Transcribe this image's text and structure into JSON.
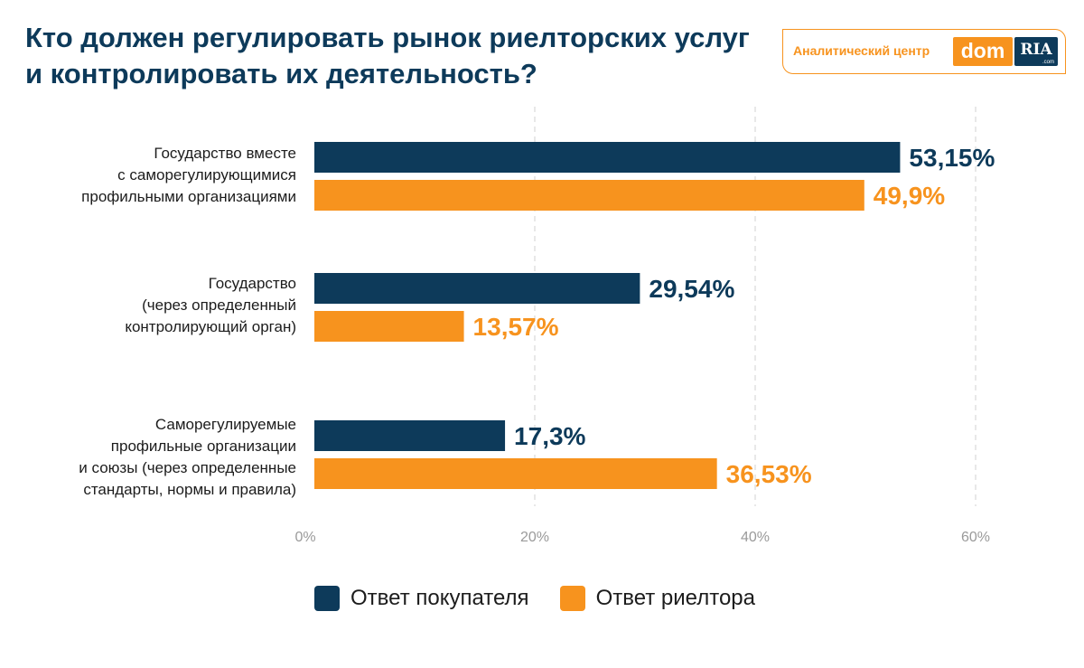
{
  "title": {
    "line1": "Кто должен регулировать рынок риелторских услуг",
    "line2": "и контролировать их деятельность?"
  },
  "brand": {
    "text": "Аналитический центр",
    "dom": "dom",
    "ria": "RIA",
    "ria_sub": ".com"
  },
  "colors": {
    "buyer": "#0d3a5a",
    "realtor": "#f7931e",
    "grid": "#d0d0d0",
    "tick": "#9a9a9a"
  },
  "chart_data": {
    "type": "bar",
    "orientation": "horizontal",
    "categories": [
      [
        "Государство вместе",
        "с саморегулирующимися",
        "профильными организациями"
      ],
      [
        "Государство",
        "(через определенный",
        "контролирующий орган)"
      ],
      [
        "Саморегулируемые",
        "профильные организации",
        "и союзы (через определенные",
        "стандарты, нормы и правила)"
      ]
    ],
    "series": [
      {
        "name": "Ответ покупателя",
        "values": [
          53.15,
          29.54,
          17.3
        ],
        "labels": [
          "53,15%",
          "29,54%",
          "17,3%"
        ]
      },
      {
        "name": "Ответ риелтора",
        "values": [
          49.9,
          13.57,
          36.53
        ],
        "labels": [
          "49,9%",
          "13,57%",
          "36,53%"
        ]
      }
    ],
    "xlim": [
      0,
      60
    ],
    "xticks": [
      0,
      20,
      40,
      60
    ],
    "xtick_labels": [
      "0%",
      "20%",
      "40%",
      "60%"
    ],
    "grid": "vertical dashed",
    "legend_position": "bottom"
  }
}
